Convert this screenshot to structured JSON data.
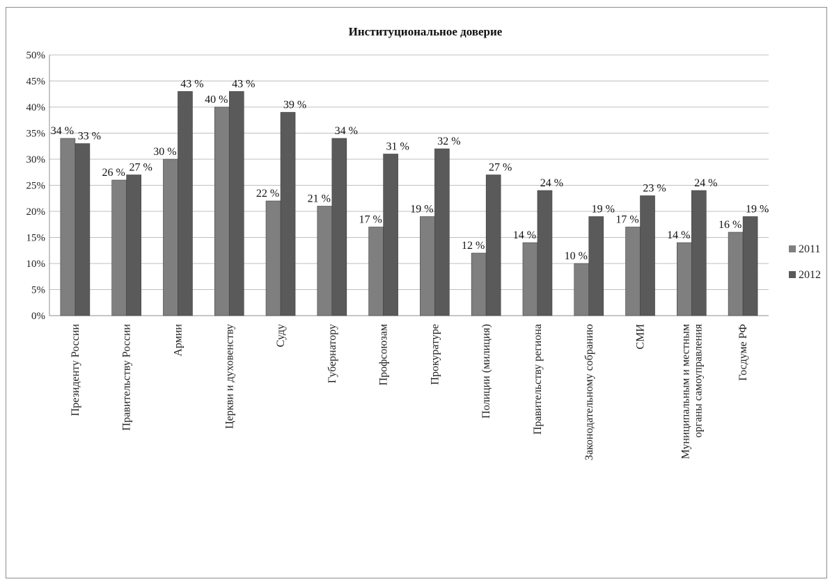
{
  "chart_data": {
    "type": "bar",
    "title": "Институциональное доверие",
    "categories": [
      "Президенту России",
      "Правительству России",
      "Армии",
      "Церкви и духовенству",
      "Суду",
      "Губернатору",
      "Профсоюзам",
      "Прокуратуре",
      "Полиции (милиция)",
      "Правительству региона",
      "Законодательному собранию",
      "СМИ",
      "Муниципальным и местным органы самоуправления",
      "Госдуме РФ"
    ],
    "series": [
      {
        "name": "2011",
        "color": "#7f7f7f",
        "values": [
          34,
          26,
          30,
          40,
          22,
          21,
          17,
          19,
          12,
          14,
          10,
          17,
          14,
          16
        ],
        "labels": [
          "34 %",
          "26 %",
          "30 %",
          "40 %",
          "22 %",
          "21 %",
          "17 %",
          "19 %",
          "12 %",
          "14 %",
          "10 %",
          "17 %",
          "14 %",
          "16 %"
        ]
      },
      {
        "name": "2012",
        "color": "#5a5a5a",
        "values": [
          33,
          27,
          43,
          43,
          39,
          34,
          31,
          32,
          27,
          24,
          19,
          23,
          24,
          19
        ],
        "labels": [
          "33 %",
          "27 %",
          "43 %",
          "43 %",
          "39 %",
          "34 %",
          "31 %",
          "32 %",
          "27 %",
          "24 %",
          "19 %",
          "23 %",
          "24 %",
          "19 %"
        ]
      }
    ],
    "ylim": [
      0,
      50
    ],
    "yticks": [
      "0%",
      "5%",
      "10%",
      "15%",
      "20%",
      "25%",
      "30%",
      "35%",
      "40%",
      "45%",
      "50%"
    ],
    "grid": true,
    "gridColor": "#bfbfbf",
    "legend": "right"
  }
}
